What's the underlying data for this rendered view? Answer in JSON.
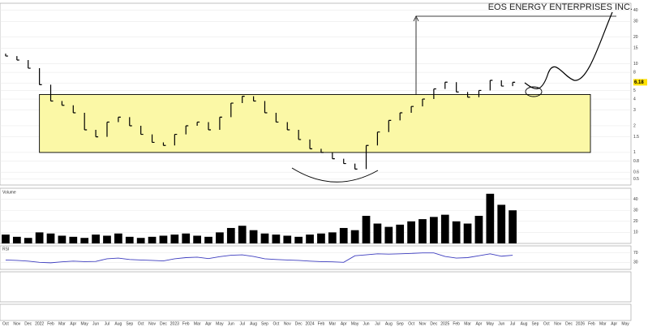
{
  "chart_data": [
    {
      "type": "price",
      "title": "EOS ENERGY ENTERPRISES INC.",
      "log_scale": true,
      "color": "#000000",
      "categories": [
        "Oct",
        "Nov",
        "Dec",
        "2022",
        "Feb",
        "Mar",
        "Apr",
        "May",
        "Jun",
        "Jul",
        "Aug",
        "Sep",
        "Oct",
        "Nov",
        "Dec",
        "2023",
        "Feb",
        "Mar",
        "Apr",
        "May",
        "Jun",
        "Jul",
        "Aug",
        "Sep",
        "Oct",
        "Nov",
        "Dec",
        "2024",
        "Feb",
        "Mar",
        "Apr",
        "May",
        "Jun",
        "Jul",
        "Aug",
        "Sep",
        "Oct",
        "Nov",
        "Dec",
        "2025",
        "Feb",
        "Mar",
        "Apr",
        "May",
        "Jun",
        "Jul",
        "Aug",
        "Sep",
        "Oct",
        "Nov",
        "Dec",
        "2026",
        "Feb",
        "Mar",
        "Apr",
        "May"
      ],
      "values": [
        12.2,
        11,
        8.9,
        5.8,
        3.8,
        3.4,
        2.8,
        1.8,
        1.5,
        2.2,
        2.5,
        2.0,
        1.6,
        1.3,
        1.2,
        1.6,
        2.0,
        2.2,
        1.8,
        2.5,
        3.6,
        4.3,
        3.8,
        2.8,
        2.2,
        1.8,
        1.4,
        1.1,
        1.0,
        0.85,
        0.75,
        0.65,
        1.2,
        1.7,
        2.3,
        2.8,
        3.3,
        4.0,
        5.2,
        6.2,
        4.8,
        4.2,
        5.0,
        6.5,
        5.6,
        6.18,
        null,
        null,
        null,
        null,
        null,
        null,
        null,
        null,
        null,
        null
      ],
      "range_box": {
        "low": 1.0,
        "high": 4.5
      },
      "ylim": [
        0.43,
        48
      ],
      "yticks": [
        40,
        30,
        20,
        15,
        10,
        8,
        6,
        5,
        4,
        3,
        2,
        1.5,
        1,
        0.8,
        0.6,
        0.5
      ]
    },
    {
      "type": "bar",
      "title": "Volume",
      "color": "#000000",
      "values": [
        8,
        6,
        5,
        10,
        9,
        7,
        6,
        5,
        8,
        7,
        9,
        6,
        5,
        6,
        7,
        8,
        9,
        7,
        6,
        10,
        14,
        16,
        12,
        9,
        8,
        7,
        6,
        8,
        9,
        10,
        14,
        12,
        25,
        18,
        15,
        17,
        20,
        22,
        24,
        26,
        20,
        18,
        25,
        45,
        35,
        30,
        null,
        null,
        null,
        null,
        null,
        null,
        null,
        null,
        null,
        null
      ],
      "ylim": [
        0,
        50
      ],
      "yticks": [
        10,
        20,
        30,
        40
      ]
    },
    {
      "type": "line",
      "title": "RSI",
      "color": "#3d3dbf",
      "values": [
        40,
        38,
        35,
        30,
        28,
        32,
        35,
        33,
        34,
        45,
        48,
        42,
        40,
        38,
        36,
        45,
        50,
        52,
        46,
        54,
        60,
        62,
        55,
        45,
        42,
        40,
        38,
        35,
        33,
        32,
        30,
        58,
        62,
        66,
        65,
        66,
        68,
        70,
        70,
        55,
        48,
        50,
        58,
        66,
        56,
        60,
        null,
        null,
        null,
        null,
        null,
        null,
        null,
        null,
        null,
        null
      ],
      "ylim": [
        0,
        100
      ],
      "yticks": [
        30,
        70
      ]
    }
  ]
}
